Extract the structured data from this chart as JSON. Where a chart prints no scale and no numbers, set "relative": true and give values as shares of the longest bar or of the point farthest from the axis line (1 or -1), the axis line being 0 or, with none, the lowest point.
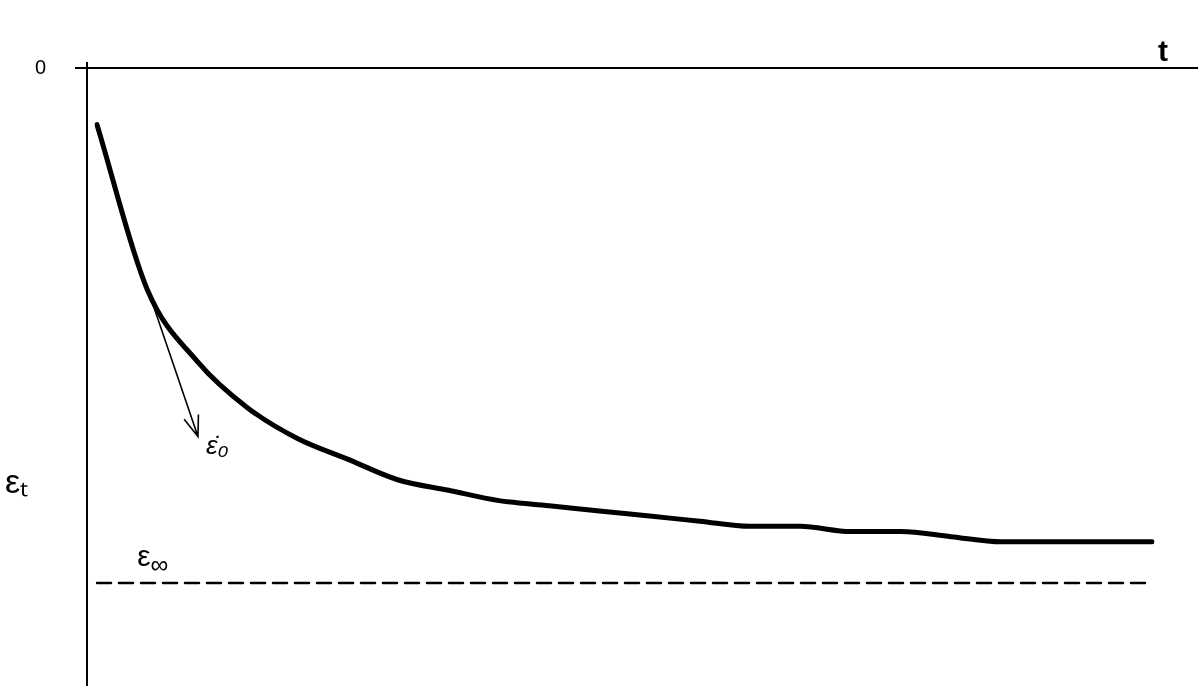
{
  "chart_data": {
    "type": "line",
    "xlabel": "t",
    "ylabel": "εₜ",
    "relative": true,
    "legend": false,
    "marker": "none",
    "categories": [
      null,
      null,
      null,
      null,
      null,
      null,
      null,
      null,
      null,
      null,
      null,
      null,
      null,
      null,
      null,
      null,
      null,
      null,
      null,
      null,
      null,
      null
    ],
    "series": [
      {
        "color": "#000000",
        "line_style": "solid",
        "values": [
          -0.11,
          -0.43,
          -0.57,
          -0.66,
          -0.72,
          -0.76,
          -0.8,
          -0.82,
          -0.84,
          -0.85,
          -0.86,
          -0.87,
          -0.88,
          -0.89,
          -0.89,
          -0.9,
          -0.9,
          -0.91,
          -0.92,
          -0.92,
          -0.92,
          -0.92
        ]
      },
      {
        "name": "ε$_{∞}$",
        "color": "#000000",
        "line_style": "dashed",
        "values": [
          -1,
          -1,
          -1,
          -1,
          -1,
          -1,
          -1,
          -1,
          -1,
          -1,
          -1,
          -1,
          -1,
          -1,
          -1,
          -1,
          -1,
          -1,
          -1,
          -1,
          -1,
          -1
        ]
      }
    ],
    "annotations": [
      "0",
      "ε̇₀"
    ]
  }
}
